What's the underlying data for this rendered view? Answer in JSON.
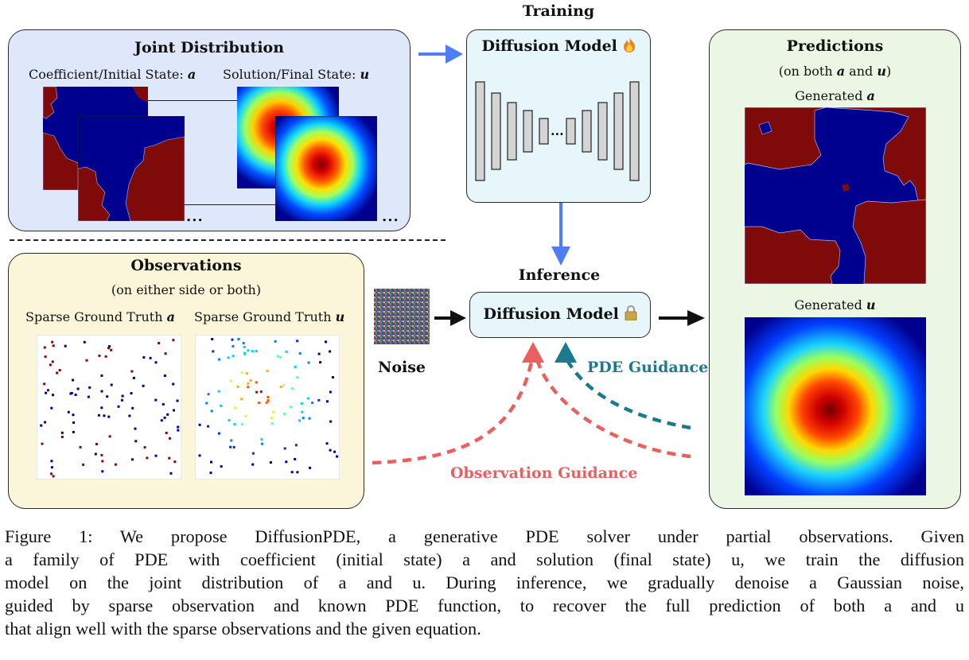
{
  "joint": {
    "title": "Joint Distribution",
    "coef_label_text": "Coefficient/Initial State: ",
    "coef_label_var": "a",
    "sol_label_text": "Solution/Final State: ",
    "sol_label_var": "u",
    "ellipsis": "..."
  },
  "training": {
    "header": "Training",
    "model_label": "Diffusion Model",
    "status_icon": "fire-icon",
    "ellipsis": "..."
  },
  "inference": {
    "header": "Inference",
    "model_label": "Diffusion Model",
    "status_icon": "lock-icon"
  },
  "noise_label": "Noise",
  "observations": {
    "title": "Observations",
    "subtitle": "(on either side or both)",
    "left_label_text": "Sparse Ground Truth ",
    "left_label_var": "a",
    "right_label_text": "Sparse Ground Truth ",
    "right_label_var": "u"
  },
  "predictions": {
    "title": "Predictions",
    "subtitle_pre": "(on both ",
    "subtitle_a": "a",
    "subtitle_mid": " and ",
    "subtitle_u": "u",
    "subtitle_post": ")",
    "gen_a_text": "Generated ",
    "gen_a_var": "a",
    "gen_u_text": "Generated ",
    "gen_u_var": "u"
  },
  "guidance": {
    "pde": "PDE Guidance",
    "observation": "Observation Guidance"
  },
  "colors": {
    "blue_arrow": "#4f7df2",
    "pde_guidance": "#1b7a90",
    "obs_guidance": "#ec5f5f",
    "coef_red": "#7f0a0a",
    "coef_blue": "#00008e"
  },
  "caption": {
    "lines": [
      "Figure 1: We propose DiffusionPDE, a generative PDE solver under partial observations. Given",
      "a family of PDE with coefficient (initial state) a and solution (final state) u, we train the diffusion",
      "model on the joint distribution of a and u. During inference, we gradually denoise a Gaussian noise,",
      "guided by sparse observation and known PDE function, to recover the full prediction of both a and u",
      "that align well with the sparse observations and the given equation."
    ]
  }
}
